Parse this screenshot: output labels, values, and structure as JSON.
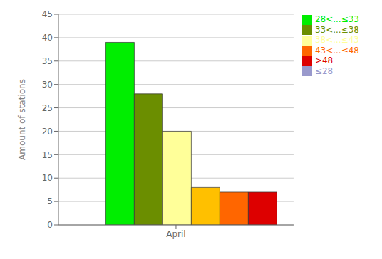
{
  "chart_data": {
    "type": "bar",
    "categories": [
      "April"
    ],
    "series": [
      {
        "name": "≤28",
        "color": "#9999CC",
        "values": [
          0
        ]
      },
      {
        "name": "28<...≤33",
        "color": "#00EE00",
        "values": [
          39
        ]
      },
      {
        "name": "33<...≤38",
        "color": "#6B8E00",
        "values": [
          28
        ]
      },
      {
        "name": "38<...≤43",
        "color": "#FFFF99",
        "values": [
          20
        ]
      },
      {
        "name": null,
        "color": "#FFC000",
        "values": [
          8
        ]
      },
      {
        "name": "43<...≤48",
        "color": "#FF6600",
        "values": [
          7
        ]
      },
      {
        "name": ">48",
        "color": "#DD0000",
        "values": [
          7
        ]
      }
    ],
    "ylabel": "Amount of stations",
    "ylim": [
      0,
      45
    ],
    "yticks": [
      0,
      5,
      10,
      15,
      20,
      25,
      30,
      35,
      40,
      45
    ],
    "grid": true,
    "legend": "upper right"
  }
}
